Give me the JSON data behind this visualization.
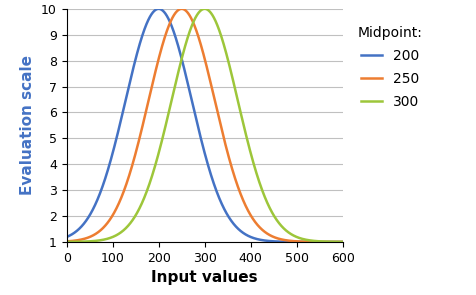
{
  "title": "",
  "xlabel": "Input values",
  "ylabel": "Evaluation scale",
  "xlim": [
    0,
    600
  ],
  "ylim": [
    1,
    10
  ],
  "xticks": [
    0,
    100,
    200,
    300,
    400,
    500,
    600
  ],
  "yticks": [
    1,
    2,
    3,
    4,
    5,
    6,
    7,
    8,
    9,
    10
  ],
  "series": [
    {
      "midpoint": 200,
      "color": "#4472C4",
      "label": "200"
    },
    {
      "midpoint": 250,
      "color": "#ED7D31",
      "label": "250"
    },
    {
      "midpoint": 300,
      "color": "#9DC63A",
      "label": "300"
    }
  ],
  "sigma": 72,
  "y_min": 1,
  "y_max": 10,
  "legend_title": "Midpoint:",
  "legend_title_fontsize": 10,
  "legend_fontsize": 10,
  "axis_label_fontsize": 11,
  "tick_fontsize": 9,
  "background_color": "#FFFFFF",
  "grid_color": "#C0C0C0",
  "line_width": 1.8
}
